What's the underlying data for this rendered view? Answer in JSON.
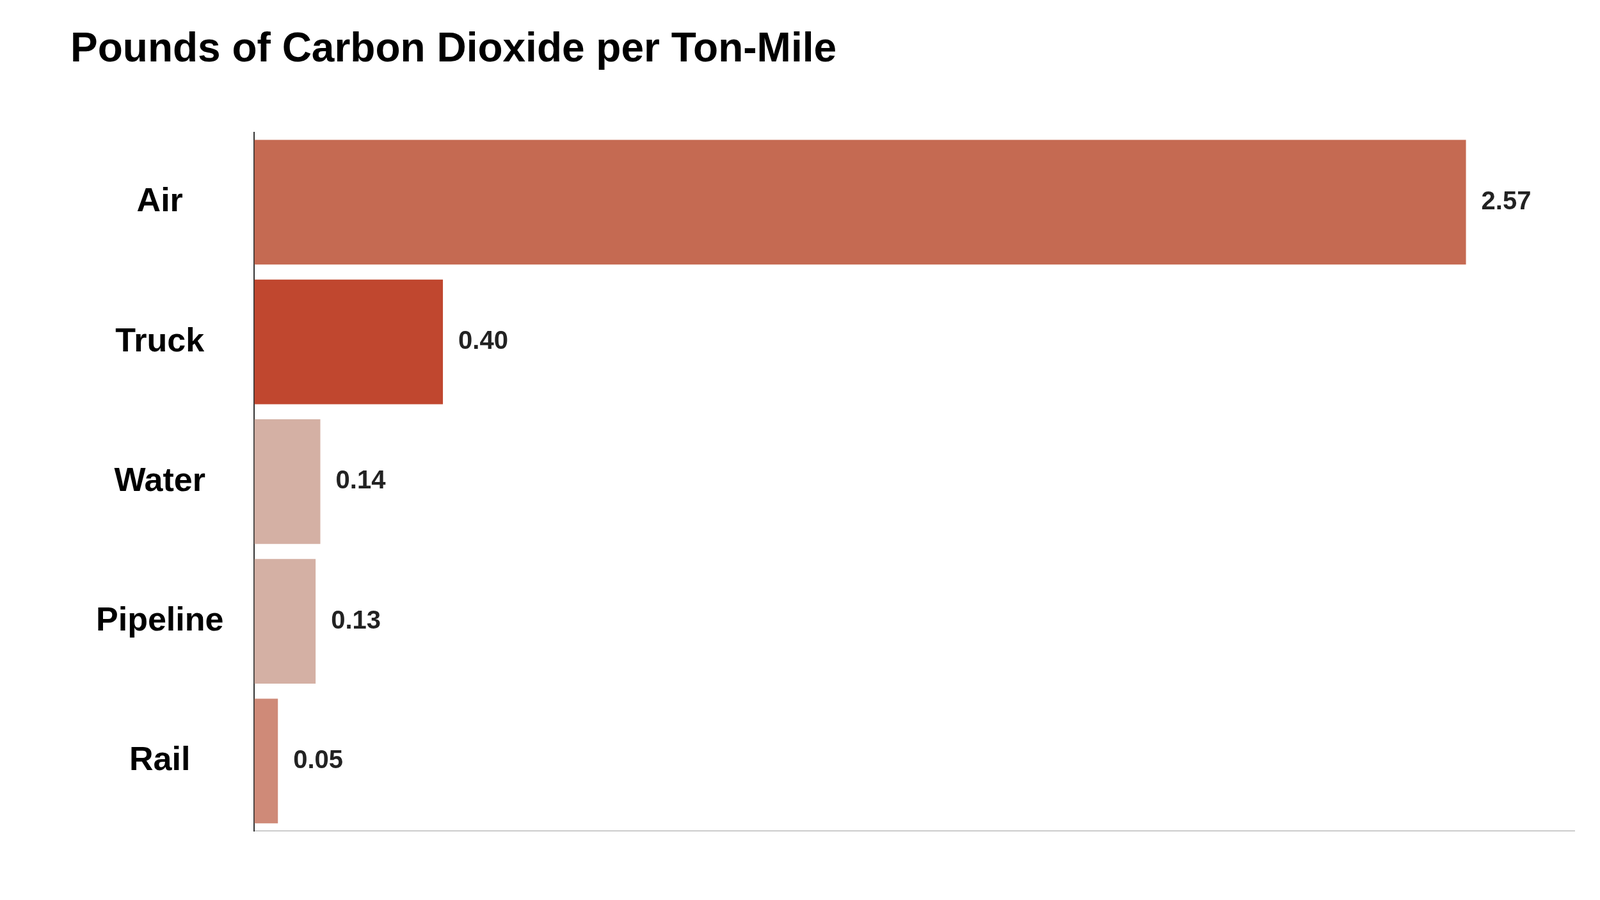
{
  "chart_data": {
    "type": "bar",
    "orientation": "horizontal",
    "title": "Pounds of Carbon Dioxide per Ton-Mile",
    "categories": [
      "Air",
      "Truck",
      "Water",
      "Pipeline",
      "Rail"
    ],
    "values": [
      2.57,
      0.4,
      0.14,
      0.13,
      0.05
    ],
    "value_labels": [
      "2.57",
      "0.40",
      "0.14",
      "0.13",
      "0.05"
    ],
    "colors": [
      "#c56a52",
      "#c0472f",
      "#d4b0a4",
      "#d4b0a4",
      "#cf8a78"
    ],
    "xlim": [
      0,
      2.8
    ],
    "grid": false,
    "data_labels": true,
    "tick_labels": "y"
  }
}
